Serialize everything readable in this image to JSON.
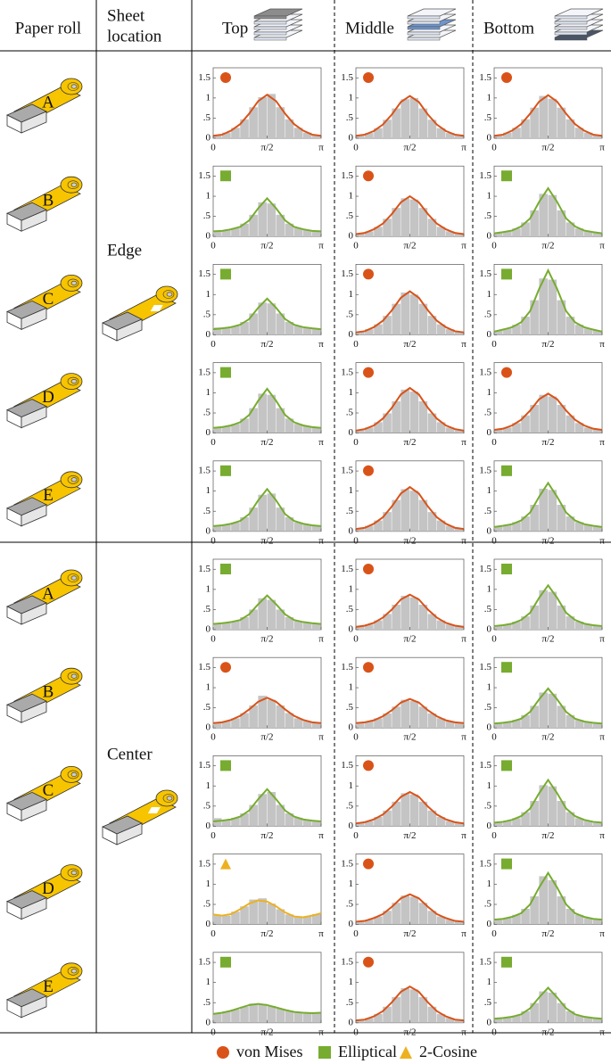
{
  "header": {
    "paper_roll": "Paper roll",
    "sheet_location": [
      "Sheet",
      "location"
    ],
    "positions": [
      "Top",
      "Middle",
      "Bottom"
    ]
  },
  "groups": [
    {
      "location": "Edge",
      "rolls": [
        "A",
        "B",
        "C",
        "D",
        "E"
      ]
    },
    {
      "location": "Center",
      "rolls": [
        "A",
        "B",
        "C",
        "D",
        "E"
      ]
    }
  ],
  "legend": [
    {
      "label": "von Mises",
      "marker": "circle",
      "color": "#d95319"
    },
    {
      "label": "Elliptical",
      "marker": "square",
      "color": "#77ac30"
    },
    {
      "label": "2-Cosine",
      "marker": "triangle",
      "color": "#edb120"
    }
  ],
  "axes": {
    "xlim": [
      0,
      3.1416
    ],
    "xticks": [
      {
        "value": 0,
        "label": "0"
      },
      {
        "value": 1.5708,
        "label": "π/2"
      },
      {
        "value": 3.1416,
        "label": "π"
      }
    ],
    "ylim": [
      0,
      1.75
    ],
    "yticks": [
      0,
      {
        "value": 0.5,
        "label": ".5"
      },
      1,
      1.5
    ],
    "bins": [
      0,
      0.2618,
      0.5236,
      0.7854,
      1.0472,
      1.309,
      1.5708,
      1.8326,
      2.0944,
      2.3562,
      2.618,
      2.8798,
      3.1416
    ]
  },
  "chart_data": [
    {
      "type": "histogram",
      "marker": "circle",
      "color": "#d95319",
      "counts": [
        0.08,
        0.14,
        0.26,
        0.47,
        0.77,
        1.02,
        1.1,
        0.77,
        0.47,
        0.26,
        0.14,
        0.08
      ],
      "fit": [
        0.06,
        0.09,
        0.19,
        0.35,
        0.61,
        0.92,
        1.08,
        0.92,
        0.61,
        0.35,
        0.19,
        0.09,
        0.06
      ]
    },
    {
      "type": "histogram",
      "marker": "circle",
      "color": "#d95319",
      "counts": [
        0.08,
        0.13,
        0.25,
        0.46,
        0.74,
        0.97,
        1.0,
        0.74,
        0.46,
        0.25,
        0.13,
        0.08
      ],
      "fit": [
        0.06,
        0.09,
        0.18,
        0.34,
        0.59,
        0.9,
        1.05,
        0.9,
        0.59,
        0.34,
        0.18,
        0.09,
        0.06
      ]
    },
    {
      "type": "histogram",
      "marker": "circle",
      "color": "#d95319",
      "counts": [
        0.07,
        0.14,
        0.26,
        0.47,
        0.76,
        1.05,
        0.98,
        0.76,
        0.47,
        0.26,
        0.14,
        0.07
      ],
      "fit": [
        0.06,
        0.09,
        0.19,
        0.35,
        0.61,
        0.91,
        1.07,
        0.91,
        0.61,
        0.35,
        0.19,
        0.09,
        0.06
      ]
    },
    {
      "type": "histogram",
      "marker": "square",
      "color": "#77ac30",
      "counts": [
        0.13,
        0.16,
        0.21,
        0.32,
        0.54,
        0.85,
        0.82,
        0.54,
        0.32,
        0.21,
        0.16,
        0.13
      ],
      "fit": [
        0.13,
        0.14,
        0.18,
        0.24,
        0.4,
        0.7,
        0.95,
        0.7,
        0.4,
        0.24,
        0.18,
        0.14,
        0.13
      ]
    },
    {
      "type": "histogram",
      "marker": "circle",
      "color": "#d95319",
      "counts": [
        0.07,
        0.13,
        0.24,
        0.44,
        0.71,
        0.95,
        0.92,
        0.71,
        0.44,
        0.24,
        0.13,
        0.07
      ],
      "fit": [
        0.06,
        0.09,
        0.18,
        0.32,
        0.56,
        0.85,
        1.0,
        0.85,
        0.56,
        0.32,
        0.18,
        0.09,
        0.06
      ]
    },
    {
      "type": "histogram",
      "marker": "square",
      "color": "#77ac30",
      "counts": [
        0.1,
        0.13,
        0.2,
        0.35,
        0.65,
        1.06,
        1.03,
        0.65,
        0.35,
        0.2,
        0.13,
        0.1
      ],
      "fit": [
        0.08,
        0.11,
        0.15,
        0.25,
        0.45,
        0.86,
        1.2,
        0.86,
        0.45,
        0.25,
        0.15,
        0.11,
        0.08
      ]
    },
    {
      "type": "histogram",
      "marker": "square",
      "color": "#77ac30",
      "counts": [
        0.18,
        0.17,
        0.22,
        0.32,
        0.53,
        0.8,
        0.78,
        0.53,
        0.32,
        0.22,
        0.17,
        0.15
      ],
      "fit": [
        0.14,
        0.16,
        0.19,
        0.25,
        0.39,
        0.67,
        0.9,
        0.67,
        0.39,
        0.25,
        0.19,
        0.16,
        0.14
      ]
    },
    {
      "type": "histogram",
      "marker": "circle",
      "color": "#d95319",
      "counts": [
        0.08,
        0.14,
        0.26,
        0.47,
        0.77,
        1.05,
        1.0,
        0.77,
        0.47,
        0.26,
        0.14,
        0.08
      ],
      "fit": [
        0.06,
        0.09,
        0.19,
        0.35,
        0.61,
        0.92,
        1.08,
        0.92,
        0.61,
        0.35,
        0.19,
        0.09,
        0.06
      ]
    },
    {
      "type": "histogram",
      "marker": "square",
      "color": "#77ac30",
      "counts": [
        0.11,
        0.16,
        0.25,
        0.45,
        0.86,
        1.4,
        1.37,
        0.86,
        0.45,
        0.25,
        0.16,
        0.11
      ],
      "fit": [
        0.08,
        0.13,
        0.19,
        0.31,
        0.59,
        1.14,
        1.6,
        1.14,
        0.59,
        0.31,
        0.19,
        0.13,
        0.08
      ]
    },
    {
      "type": "histogram",
      "marker": "square",
      "color": "#77ac30",
      "counts": [
        0.14,
        0.17,
        0.23,
        0.36,
        0.62,
        0.98,
        0.95,
        0.62,
        0.36,
        0.23,
        0.17,
        0.14
      ],
      "fit": [
        0.13,
        0.15,
        0.19,
        0.27,
        0.45,
        0.8,
        1.1,
        0.8,
        0.45,
        0.27,
        0.19,
        0.15,
        0.13
      ]
    },
    {
      "type": "histogram",
      "marker": "circle",
      "color": "#d95319",
      "counts": [
        0.08,
        0.14,
        0.27,
        0.49,
        0.79,
        1.08,
        1.03,
        0.79,
        0.49,
        0.27,
        0.14,
        0.08
      ],
      "fit": [
        0.06,
        0.1,
        0.19,
        0.36,
        0.63,
        0.96,
        1.12,
        0.96,
        0.63,
        0.36,
        0.19,
        0.1,
        0.06
      ]
    },
    {
      "type": "histogram",
      "marker": "circle",
      "color": "#d95319",
      "counts": [
        0.09,
        0.14,
        0.25,
        0.44,
        0.7,
        0.95,
        0.91,
        0.7,
        0.44,
        0.25,
        0.14,
        0.09
      ],
      "fit": [
        0.08,
        0.11,
        0.19,
        0.33,
        0.56,
        0.84,
        0.98,
        0.84,
        0.56,
        0.33,
        0.19,
        0.11,
        0.08
      ]
    },
    {
      "type": "histogram",
      "marker": "square",
      "color": "#77ac30",
      "counts": [
        0.14,
        0.17,
        0.22,
        0.35,
        0.59,
        0.91,
        0.94,
        0.59,
        0.35,
        0.22,
        0.17,
        0.14
      ],
      "fit": [
        0.13,
        0.15,
        0.19,
        0.26,
        0.43,
        0.77,
        1.05,
        0.77,
        0.43,
        0.26,
        0.19,
        0.15,
        0.13
      ]
    },
    {
      "type": "histogram",
      "marker": "circle",
      "color": "#d95319",
      "counts": [
        0.08,
        0.14,
        0.27,
        0.48,
        0.78,
        1.05,
        1.01,
        0.78,
        0.48,
        0.27,
        0.14,
        0.08
      ],
      "fit": [
        0.06,
        0.09,
        0.19,
        0.35,
        0.62,
        0.94,
        1.1,
        0.94,
        0.62,
        0.35,
        0.19,
        0.09,
        0.06
      ]
    },
    {
      "type": "histogram",
      "marker": "square",
      "color": "#77ac30",
      "counts": [
        0.12,
        0.16,
        0.23,
        0.37,
        0.66,
        1.06,
        1.03,
        0.66,
        0.37,
        0.23,
        0.16,
        0.12
      ],
      "fit": [
        0.11,
        0.14,
        0.18,
        0.27,
        0.47,
        0.86,
        1.2,
        0.86,
        0.47,
        0.27,
        0.18,
        0.14,
        0.11
      ]
    },
    {
      "type": "histogram",
      "marker": "square",
      "color": "#77ac30",
      "counts": [
        0.16,
        0.17,
        0.21,
        0.31,
        0.5,
        0.78,
        0.74,
        0.5,
        0.31,
        0.21,
        0.17,
        0.15
      ],
      "fit": [
        0.14,
        0.16,
        0.19,
        0.24,
        0.38,
        0.63,
        0.85,
        0.63,
        0.38,
        0.24,
        0.19,
        0.16,
        0.14
      ]
    },
    {
      "type": "histogram",
      "marker": "circle",
      "color": "#d95319",
      "counts": [
        0.09,
        0.13,
        0.23,
        0.39,
        0.62,
        0.84,
        0.8,
        0.62,
        0.39,
        0.23,
        0.13,
        0.09
      ],
      "fit": [
        0.07,
        0.1,
        0.17,
        0.3,
        0.5,
        0.75,
        0.87,
        0.75,
        0.5,
        0.3,
        0.17,
        0.1,
        0.07
      ]
    },
    {
      "type": "histogram",
      "marker": "square",
      "color": "#77ac30",
      "counts": [
        0.1,
        0.13,
        0.2,
        0.33,
        0.6,
        0.98,
        0.94,
        0.6,
        0.33,
        0.2,
        0.13,
        0.1
      ],
      "fit": [
        0.09,
        0.11,
        0.15,
        0.24,
        0.42,
        0.79,
        1.1,
        0.79,
        0.42,
        0.24,
        0.15,
        0.11,
        0.09
      ]
    },
    {
      "type": "histogram",
      "marker": "circle",
      "color": "#d95319",
      "counts": [
        0.13,
        0.17,
        0.24,
        0.37,
        0.56,
        0.8,
        0.7,
        0.56,
        0.37,
        0.24,
        0.17,
        0.13
      ],
      "fit": [
        0.12,
        0.14,
        0.2,
        0.3,
        0.46,
        0.65,
        0.75,
        0.65,
        0.46,
        0.3,
        0.2,
        0.14,
        0.12
      ]
    },
    {
      "type": "histogram",
      "marker": "circle",
      "color": "#d95319",
      "counts": [
        0.13,
        0.16,
        0.24,
        0.36,
        0.53,
        0.7,
        0.67,
        0.53,
        0.36,
        0.24,
        0.16,
        0.13
      ],
      "fit": [
        0.12,
        0.14,
        0.19,
        0.29,
        0.44,
        0.63,
        0.72,
        0.63,
        0.44,
        0.29,
        0.19,
        0.14,
        0.12
      ]
    },
    {
      "type": "histogram",
      "marker": "square",
      "color": "#77ac30",
      "counts": [
        0.12,
        0.14,
        0.2,
        0.32,
        0.55,
        0.88,
        0.85,
        0.55,
        0.32,
        0.2,
        0.14,
        0.12
      ],
      "fit": [
        0.11,
        0.13,
        0.16,
        0.23,
        0.4,
        0.71,
        0.98,
        0.71,
        0.4,
        0.23,
        0.16,
        0.13,
        0.11
      ]
    },
    {
      "type": "histogram",
      "marker": "square",
      "color": "#77ac30",
      "counts": [
        0.2,
        0.16,
        0.21,
        0.32,
        0.53,
        0.8,
        0.85,
        0.53,
        0.32,
        0.21,
        0.16,
        0.13
      ],
      "fit": [
        0.12,
        0.14,
        0.17,
        0.24,
        0.39,
        0.67,
        0.92,
        0.67,
        0.39,
        0.24,
        0.17,
        0.14,
        0.12
      ]
    },
    {
      "type": "histogram",
      "marker": "circle",
      "color": "#d95319",
      "counts": [
        0.09,
        0.13,
        0.23,
        0.39,
        0.61,
        0.82,
        0.79,
        0.61,
        0.39,
        0.23,
        0.13,
        0.09
      ],
      "fit": [
        0.07,
        0.1,
        0.17,
        0.29,
        0.49,
        0.73,
        0.85,
        0.73,
        0.49,
        0.29,
        0.17,
        0.1,
        0.07
      ]
    },
    {
      "type": "histogram",
      "marker": "square",
      "color": "#77ac30",
      "counts": [
        0.1,
        0.14,
        0.2,
        0.35,
        0.63,
        1.02,
        0.99,
        0.63,
        0.35,
        0.2,
        0.14,
        0.1
      ],
      "fit": [
        0.09,
        0.11,
        0.16,
        0.25,
        0.44,
        0.82,
        1.15,
        0.82,
        0.44,
        0.25,
        0.16,
        0.11,
        0.09
      ]
    },
    {
      "type": "histogram",
      "marker": "triangle",
      "color": "#edb120",
      "counts": [
        0.24,
        0.22,
        0.32,
        0.45,
        0.62,
        0.65,
        0.52,
        0.38,
        0.25,
        0.18,
        0.2,
        0.26
      ],
      "fit": [
        0.25,
        0.22,
        0.26,
        0.38,
        0.52,
        0.6,
        0.57,
        0.45,
        0.3,
        0.2,
        0.18,
        0.22,
        0.28
      ]
    },
    {
      "type": "histogram",
      "marker": "circle",
      "color": "#d95319",
      "counts": [
        0.08,
        0.12,
        0.2,
        0.34,
        0.54,
        0.72,
        0.69,
        0.54,
        0.34,
        0.2,
        0.12,
        0.08
      ],
      "fit": [
        0.07,
        0.09,
        0.16,
        0.26,
        0.44,
        0.65,
        0.75,
        0.65,
        0.44,
        0.26,
        0.16,
        0.09,
        0.07
      ]
    },
    {
      "type": "histogram",
      "marker": "square",
      "color": "#77ac30",
      "counts": [
        0.13,
        0.16,
        0.24,
        0.39,
        0.7,
        1.2,
        1.1,
        0.7,
        0.39,
        0.24,
        0.16,
        0.13
      ],
      "fit": [
        0.12,
        0.14,
        0.19,
        0.28,
        0.5,
        0.92,
        1.28,
        0.92,
        0.5,
        0.28,
        0.19,
        0.14,
        0.12
      ]
    },
    {
      "type": "histogram",
      "marker": "square",
      "color": "#77ac30",
      "counts": [
        0.25,
        0.28,
        0.33,
        0.4,
        0.48,
        0.47,
        0.42,
        0.35,
        0.3,
        0.26,
        0.24,
        0.24
      ],
      "fit": [
        0.22,
        0.25,
        0.3,
        0.37,
        0.44,
        0.47,
        0.44,
        0.38,
        0.32,
        0.27,
        0.25,
        0.24,
        0.25
      ]
    },
    {
      "type": "histogram",
      "marker": "circle",
      "color": "#d95319",
      "counts": [
        0.07,
        0.12,
        0.22,
        0.4,
        0.64,
        0.86,
        0.83,
        0.64,
        0.4,
        0.22,
        0.12,
        0.07
      ],
      "fit": [
        0.06,
        0.08,
        0.16,
        0.29,
        0.51,
        0.77,
        0.9,
        0.77,
        0.51,
        0.29,
        0.16,
        0.08,
        0.06
      ]
    },
    {
      "type": "histogram",
      "marker": "square",
      "color": "#77ac30",
      "counts": [
        0.11,
        0.14,
        0.18,
        0.29,
        0.49,
        0.78,
        0.75,
        0.49,
        0.29,
        0.18,
        0.14,
        0.11
      ],
      "fit": [
        0.1,
        0.12,
        0.15,
        0.21,
        0.36,
        0.63,
        0.87,
        0.63,
        0.36,
        0.21,
        0.15,
        0.12,
        0.1
      ]
    }
  ]
}
